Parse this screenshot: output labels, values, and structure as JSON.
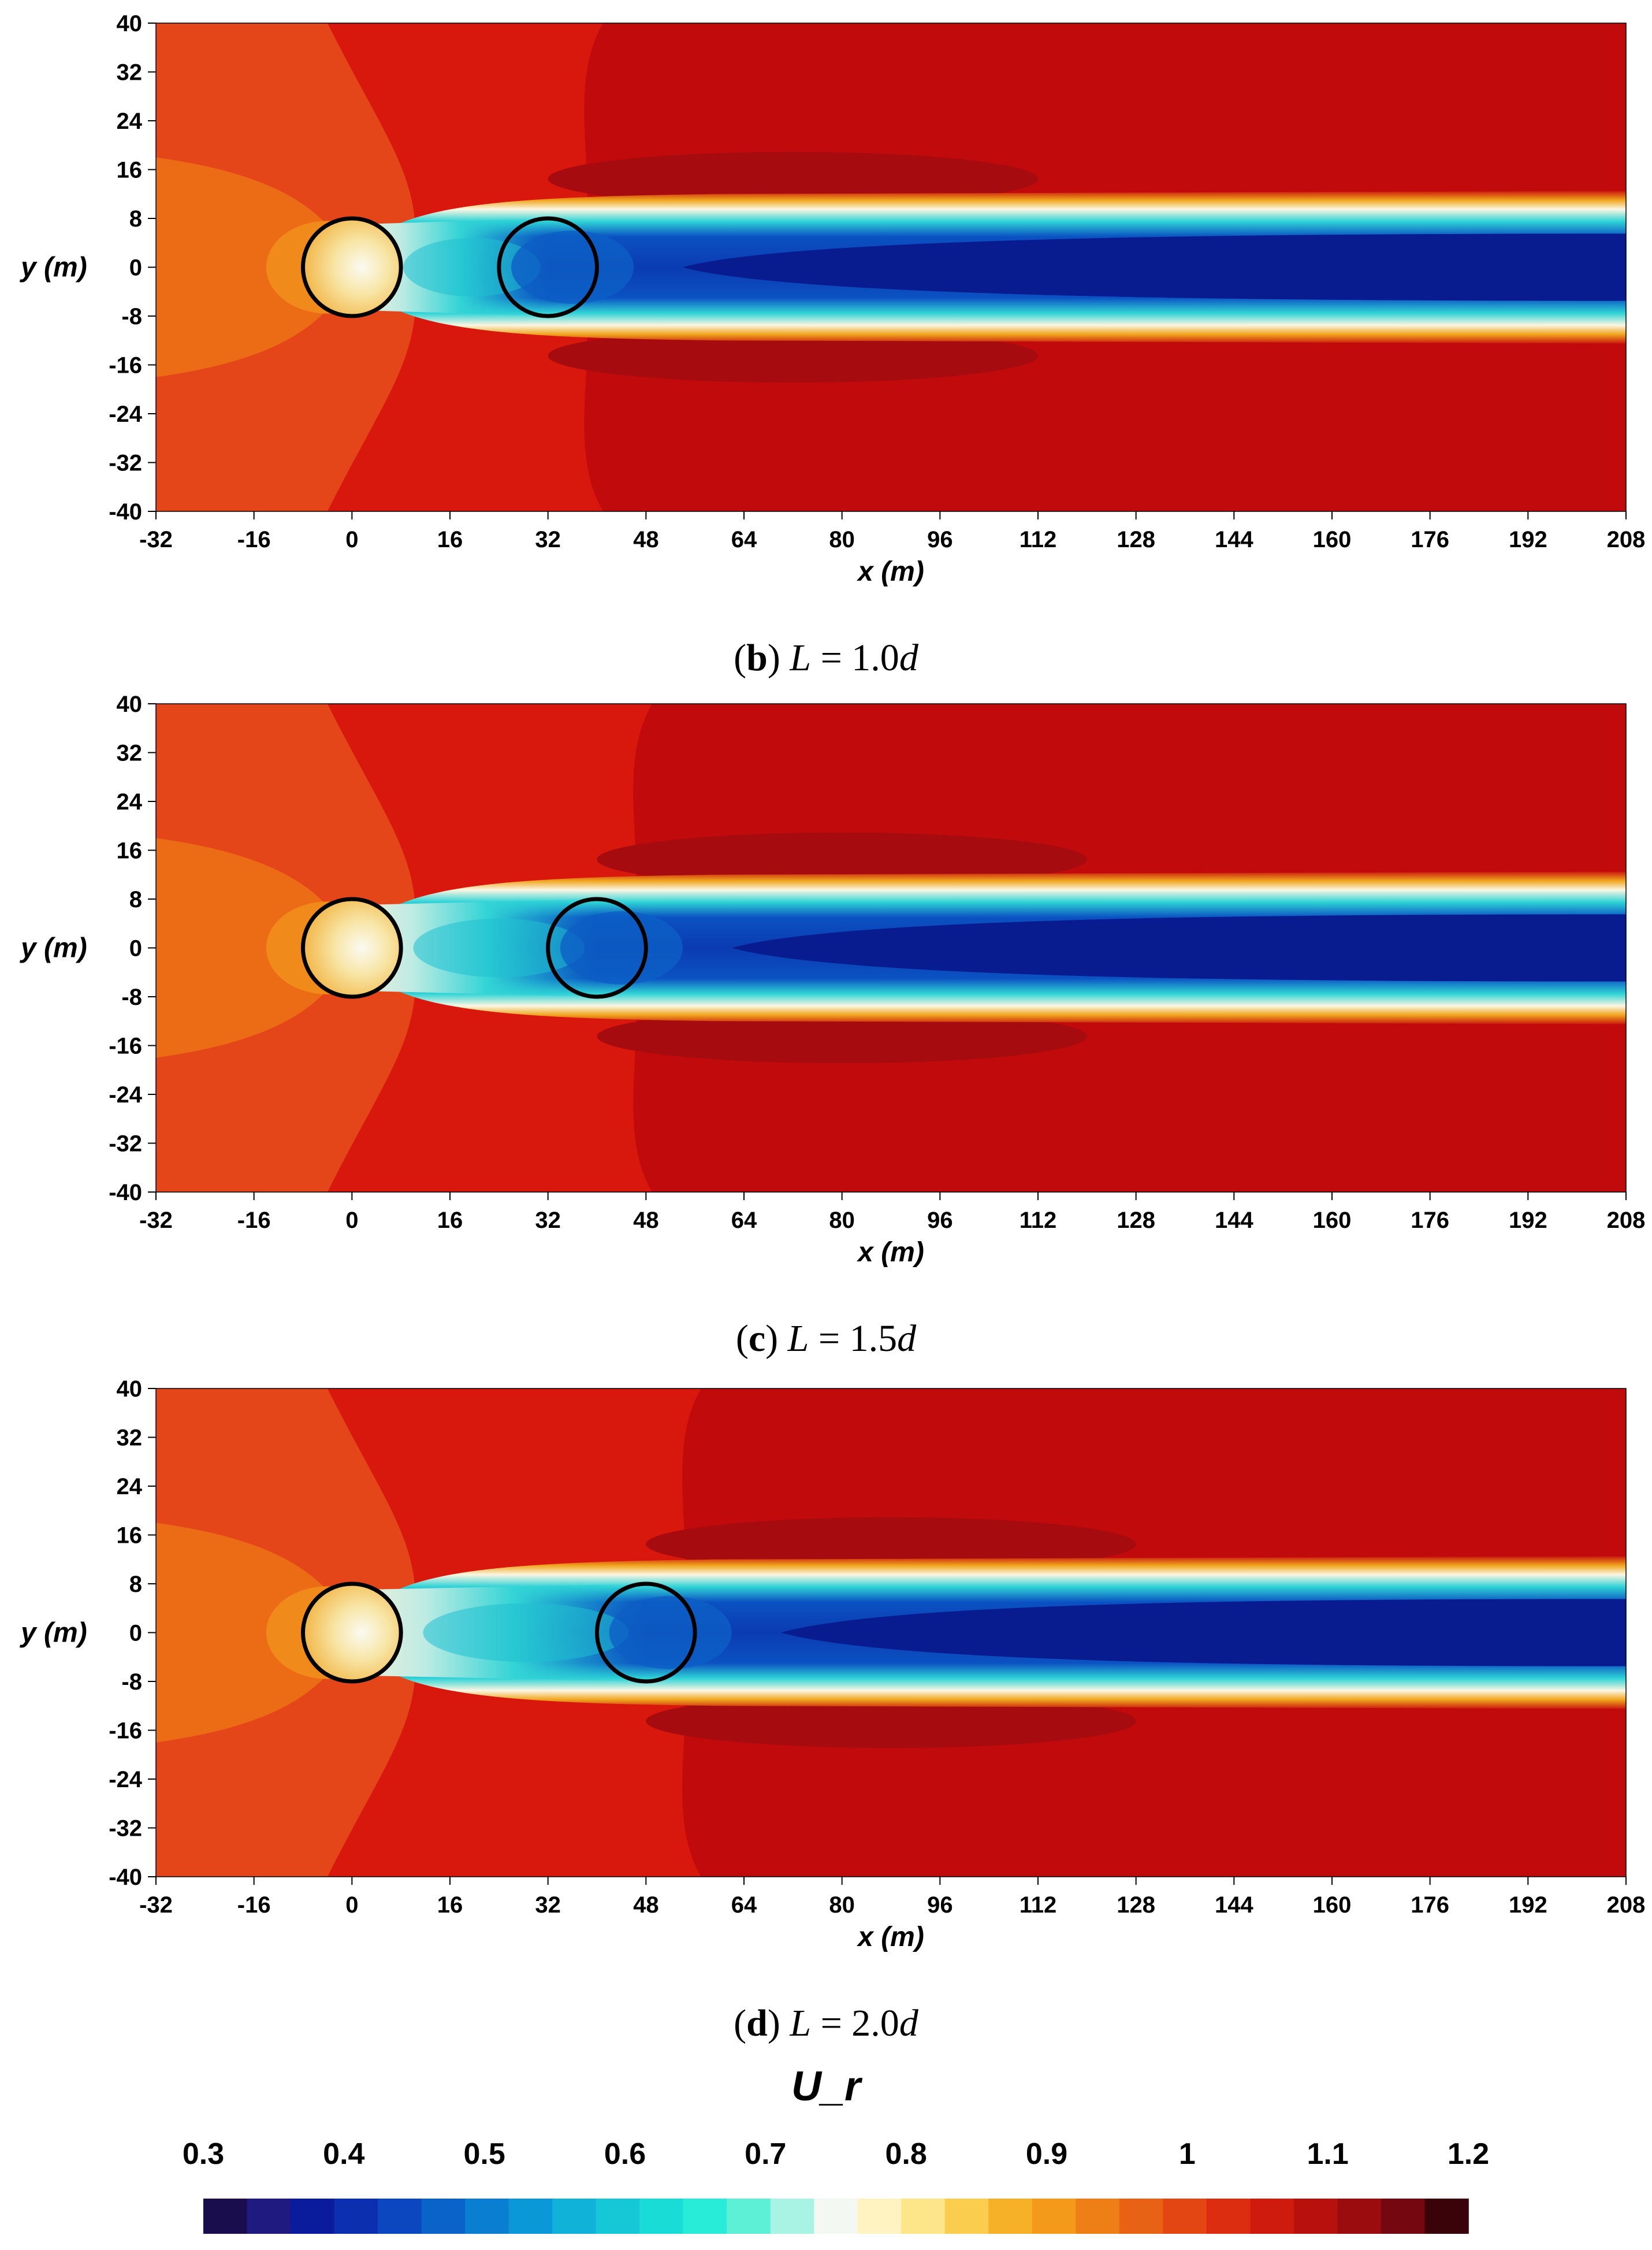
{
  "chart_data": [
    {
      "type": "heatmap",
      "panel": "b",
      "caption": {
        "label": "b",
        "text": "L = 1.0d"
      },
      "xlabel": "x (m)",
      "ylabel": "y (m)",
      "xlim": [
        -32,
        208
      ],
      "ylim": [
        -40,
        40
      ],
      "xticks": [
        -32,
        -16,
        0,
        16,
        32,
        48,
        64,
        80,
        96,
        112,
        128,
        144,
        160,
        176,
        192,
        208
      ],
      "yticks": [
        40,
        32,
        24,
        16,
        8,
        0,
        -8,
        -16,
        -24,
        -32,
        -40
      ],
      "turbines": [
        {
          "x": 0,
          "y": 0,
          "diameter": 16
        },
        {
          "x": 32,
          "y": 0,
          "diameter": 16
        }
      ],
      "field": "U_r"
    },
    {
      "type": "heatmap",
      "panel": "c",
      "caption": {
        "label": "c",
        "text": "L = 1.5d"
      },
      "xlabel": "x (m)",
      "ylabel": "y (m)",
      "xlim": [
        -32,
        208
      ],
      "ylim": [
        -40,
        40
      ],
      "xticks": [
        -32,
        -16,
        0,
        16,
        32,
        48,
        64,
        80,
        96,
        112,
        128,
        144,
        160,
        176,
        192,
        208
      ],
      "yticks": [
        40,
        32,
        24,
        16,
        8,
        0,
        -8,
        -16,
        -24,
        -32,
        -40
      ],
      "turbines": [
        {
          "x": 0,
          "y": 0,
          "diameter": 16
        },
        {
          "x": 40,
          "y": 0,
          "diameter": 16
        }
      ],
      "field": "U_r"
    },
    {
      "type": "heatmap",
      "panel": "d",
      "caption": {
        "label": "d",
        "text": "L = 2.0d"
      },
      "xlabel": "x (m)",
      "ylabel": "y (m)",
      "xlim": [
        -32,
        208
      ],
      "ylim": [
        -40,
        40
      ],
      "xticks": [
        -32,
        -16,
        0,
        16,
        32,
        48,
        64,
        80,
        96,
        112,
        128,
        144,
        160,
        176,
        192,
        208
      ],
      "yticks": [
        40,
        32,
        24,
        16,
        8,
        0,
        -8,
        -16,
        -24,
        -32,
        -40
      ],
      "turbines": [
        {
          "x": 0,
          "y": 0,
          "diameter": 16
        },
        {
          "x": 48,
          "y": 0,
          "diameter": 16
        }
      ],
      "field": "U_r"
    }
  ],
  "colorbar": {
    "title": "U_r",
    "ticks": [
      "0.3",
      "0.4",
      "0.5",
      "0.6",
      "0.7",
      "0.8",
      "0.9",
      "1",
      "1.1",
      "1.2"
    ],
    "range": [
      0.3,
      1.2
    ],
    "colors": [
      "#1a0d4d",
      "#1f1a80",
      "#0a1c9c",
      "#0b2fae",
      "#0c47bf",
      "#0a63c9",
      "#0a7fd2",
      "#0a98d6",
      "#10b2d8",
      "#16c8d6",
      "#1adcd6",
      "#29ecd8",
      "#5df0d6",
      "#a9f3e4",
      "#f4f8f2",
      "#fff3c2",
      "#fde58a",
      "#fbcd4f",
      "#f7b128",
      "#f39a1b",
      "#ee7f17",
      "#e86215",
      "#e34612",
      "#dc2d10",
      "#cf1a0e",
      "#b8100d",
      "#9a0c0d",
      "#750710",
      "#3a0209"
    ]
  }
}
